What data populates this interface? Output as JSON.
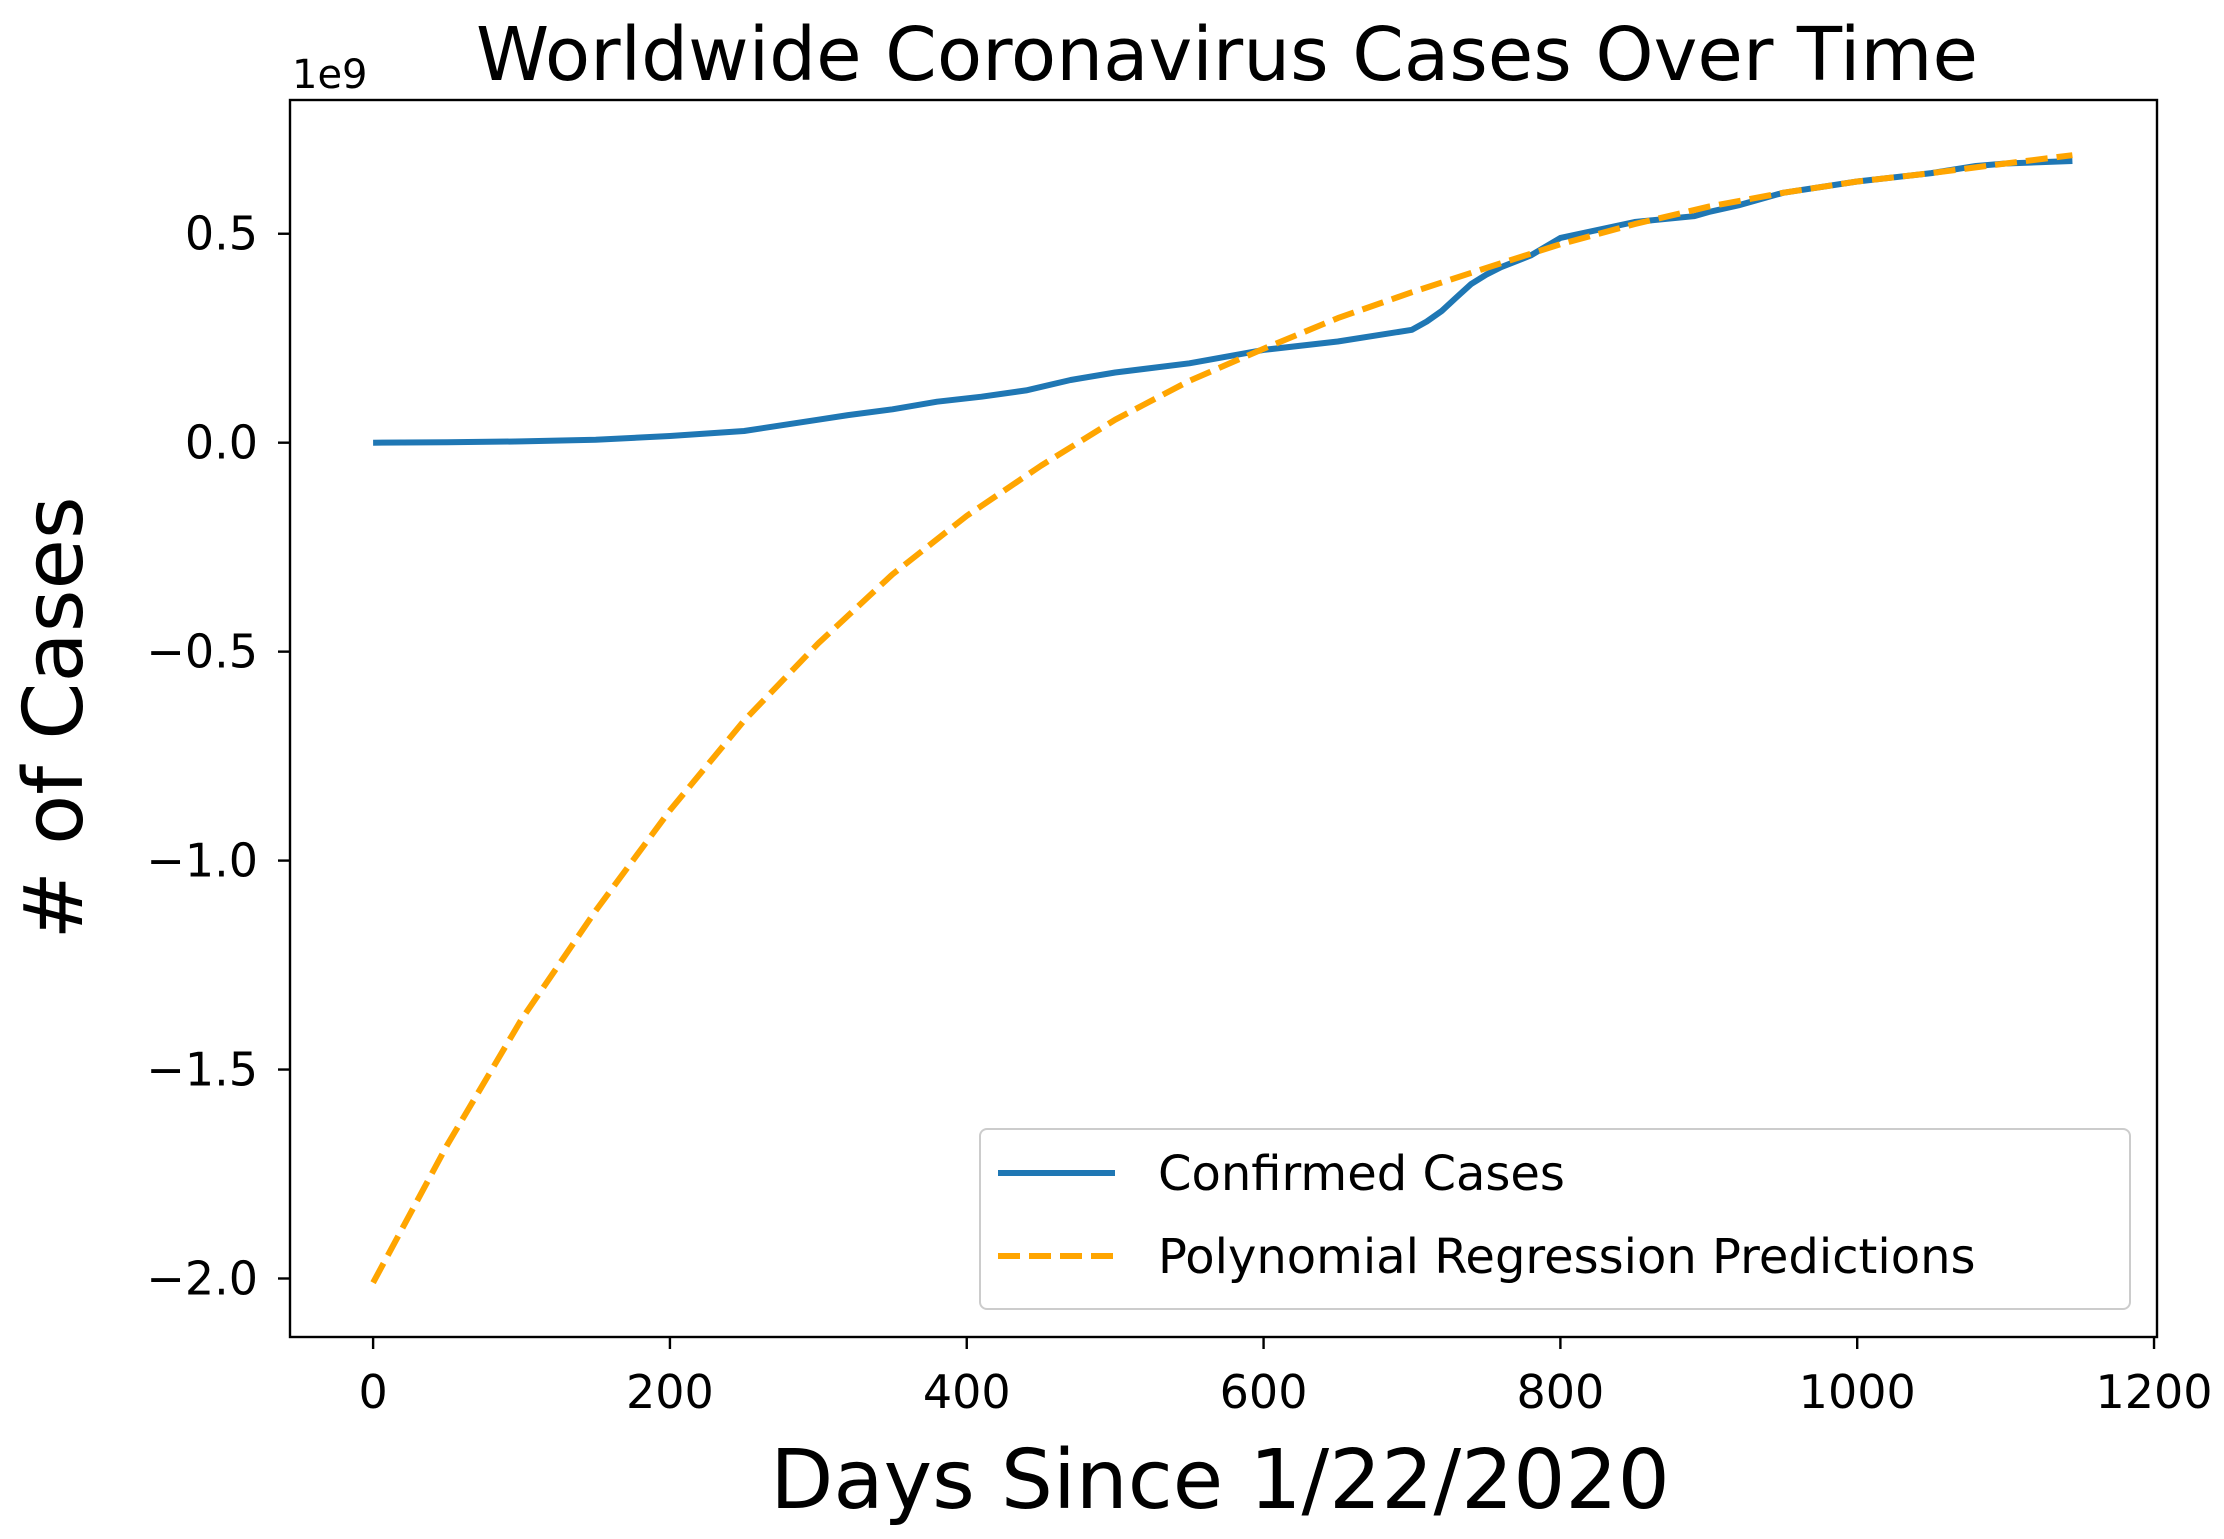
{
  "chart_data": {
    "type": "line",
    "title": "Worldwide Coronavirus Cases Over Time",
    "xlabel": "Days Since 1/22/2020",
    "ylabel": "# of Cases",
    "y_offset_label": "1e9",
    "xlim": [
      -56,
      1202
    ],
    "ylim": [
      -2.14,
      0.82
    ],
    "x_ticks": [
      0,
      200,
      400,
      600,
      800,
      1000,
      1200
    ],
    "x_tick_labels": [
      "0",
      "200",
      "400",
      "600",
      "800",
      "1000",
      "1200"
    ],
    "y_ticks": [
      0.5,
      0.0,
      -0.5,
      -1.0,
      -1.5,
      -2.0
    ],
    "y_tick_labels": [
      "0.5",
      "0.0",
      "−0.5",
      "−1.0",
      "−1.5",
      "−2.0"
    ],
    "grid": false,
    "legend_position": "lower-right",
    "series": [
      {
        "name": "Confirmed Cases",
        "color": "#1f77b4",
        "style": "solid",
        "x": [
          0,
          50,
          100,
          150,
          200,
          250,
          300,
          320,
          350,
          380,
          410,
          440,
          470,
          500,
          550,
          600,
          650,
          700,
          710,
          720,
          730,
          740,
          750,
          760,
          780,
          800,
          850,
          890,
          900,
          920,
          950,
          1000,
          1050,
          1080,
          1100,
          1145
        ],
        "y": [
          0.0,
          0.001,
          0.003,
          0.007,
          0.016,
          0.028,
          0.055,
          0.066,
          0.08,
          0.098,
          0.11,
          0.125,
          0.15,
          0.168,
          0.19,
          0.222,
          0.242,
          0.27,
          0.29,
          0.315,
          0.348,
          0.38,
          0.402,
          0.42,
          0.448,
          0.49,
          0.528,
          0.542,
          0.552,
          0.568,
          0.598,
          0.625,
          0.645,
          0.662,
          0.668,
          0.674
        ]
      },
      {
        "name": "Polynomial Regression Predictions",
        "color": "#ffa500",
        "style": "dashed",
        "x": [
          0,
          50,
          100,
          150,
          200,
          250,
          300,
          350,
          400,
          450,
          500,
          550,
          600,
          650,
          700,
          750,
          800,
          850,
          900,
          950,
          1000,
          1050,
          1100,
          1145
        ],
        "y": [
          -2.01,
          -1.68,
          -1.38,
          -1.12,
          -0.88,
          -0.665,
          -0.48,
          -0.315,
          -0.175,
          -0.055,
          0.055,
          0.148,
          0.225,
          0.298,
          0.36,
          0.418,
          0.475,
          0.523,
          0.565,
          0.598,
          0.625,
          0.645,
          0.668,
          0.688
        ]
      }
    ]
  }
}
